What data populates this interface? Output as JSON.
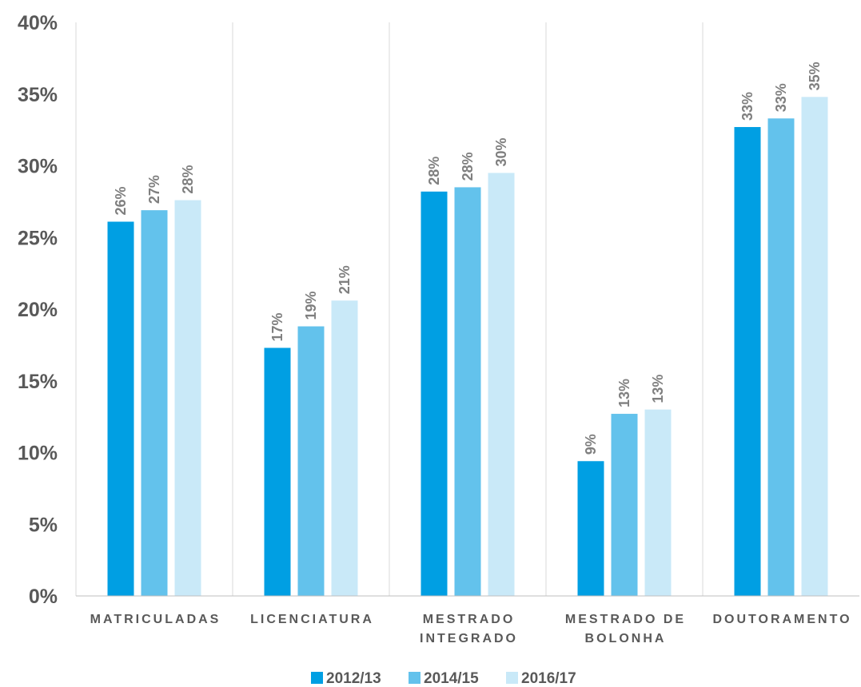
{
  "chart_data": {
    "type": "bar",
    "categories": [
      [
        "MATRICULADAS"
      ],
      [
        "LICENCIATURA"
      ],
      [
        "MESTRADO",
        "INTEGRADO"
      ],
      [
        "MESTRADO DE",
        "BOLONHA"
      ],
      [
        "DOUTORAMENTO"
      ]
    ],
    "series": [
      {
        "name": "2012/13",
        "color": "#009fe3",
        "values": [
          26.1,
          17.3,
          28.2,
          9.4,
          32.7
        ],
        "labels": [
          "26%",
          "17%",
          "28%",
          "9%",
          "33%"
        ]
      },
      {
        "name": "2014/15",
        "color": "#63c2ec",
        "values": [
          26.9,
          18.8,
          28.5,
          12.7,
          33.3
        ],
        "labels": [
          "27%",
          "19%",
          "28%",
          "13%",
          "33%"
        ]
      },
      {
        "name": "2016/17",
        "color": "#c9e9f8",
        "values": [
          27.6,
          20.6,
          29.5,
          13.0,
          34.8
        ],
        "labels": [
          "28%",
          "21%",
          "30%",
          "13%",
          "35%"
        ]
      }
    ],
    "yticks": [
      "0%",
      "5%",
      "10%",
      "15%",
      "20%",
      "25%",
      "30%",
      "35%",
      "40%"
    ],
    "ylim": [
      0,
      40
    ],
    "legend_position": "bottom",
    "grid": "vertical category separators"
  }
}
